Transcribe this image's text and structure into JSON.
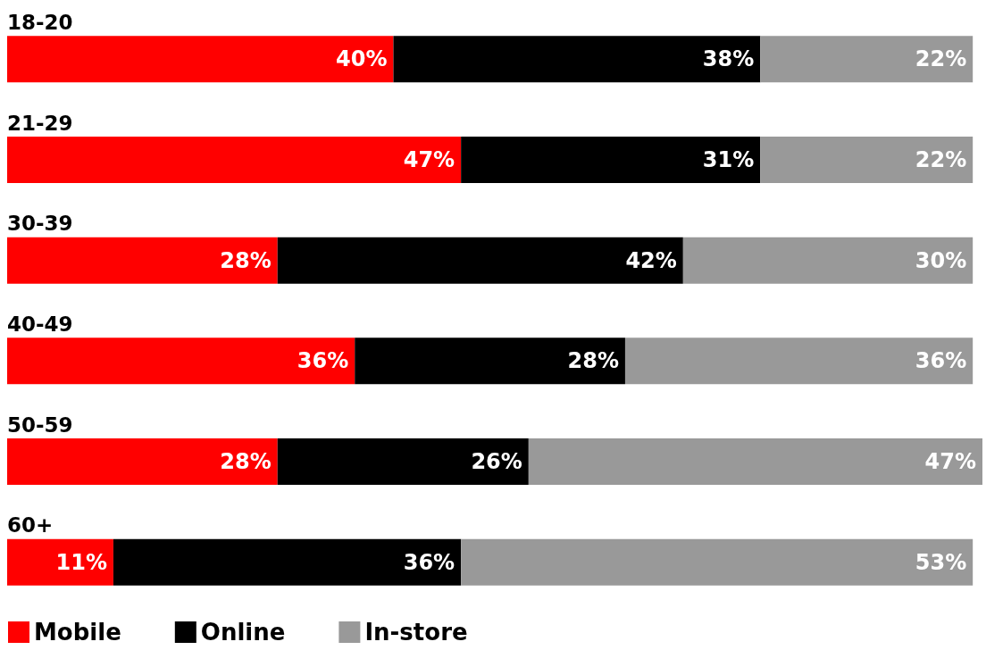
{
  "chart_data": {
    "type": "bar",
    "orientation": "horizontal",
    "stacked": true,
    "legend": "bottom left",
    "categories": [
      "18-20",
      "21-29",
      "30-39",
      "40-49",
      "50-59",
      "60+"
    ],
    "series": [
      {
        "name": "Mobile",
        "color": "#ff0000",
        "values": [
          40,
          47,
          28,
          36,
          28,
          11
        ],
        "value_labels": [
          "40%",
          "47%",
          "28%",
          "36%",
          "28%",
          "11%"
        ]
      },
      {
        "name": "Online",
        "color": "#000000",
        "values": [
          38,
          31,
          42,
          28,
          26,
          36
        ],
        "value_labels": [
          "38%",
          "31%",
          "42%",
          "28%",
          "26%",
          "36%"
        ]
      },
      {
        "name": "In-store",
        "color": "#999999",
        "values": [
          22,
          22,
          30,
          36,
          47,
          53
        ],
        "value_labels": [
          "22%",
          "22%",
          "30%",
          "36%",
          "47%",
          "53%"
        ]
      }
    ]
  }
}
